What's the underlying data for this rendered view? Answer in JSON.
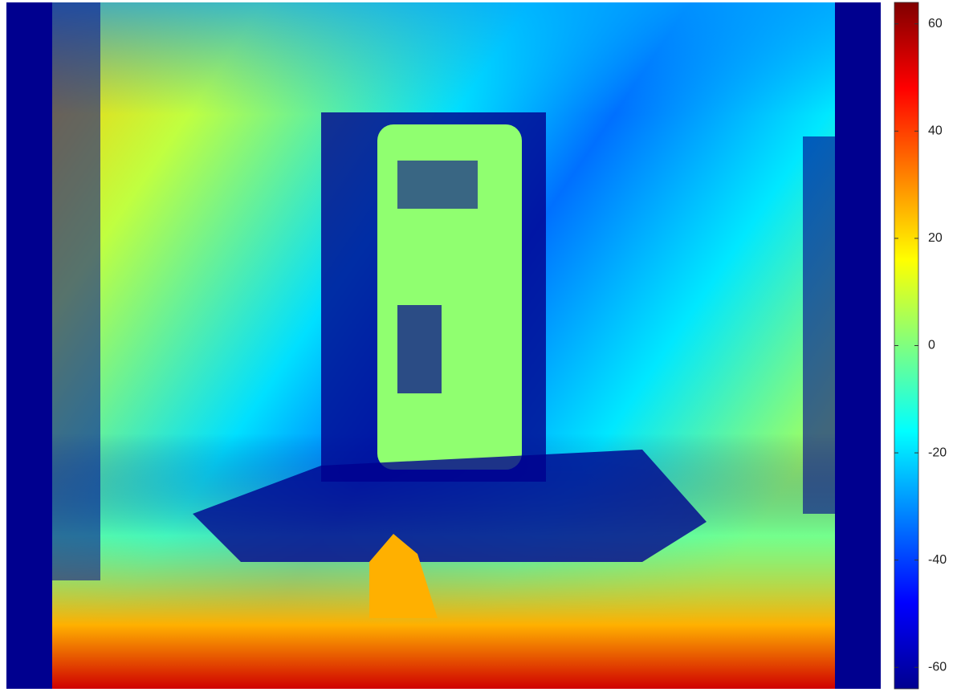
{
  "chart_data": {
    "type": "image",
    "colormap": "jet",
    "clim": [
      -64,
      64
    ],
    "cticks": [
      -60,
      -40,
      -20,
      0,
      20,
      40,
      60
    ]
  }
}
